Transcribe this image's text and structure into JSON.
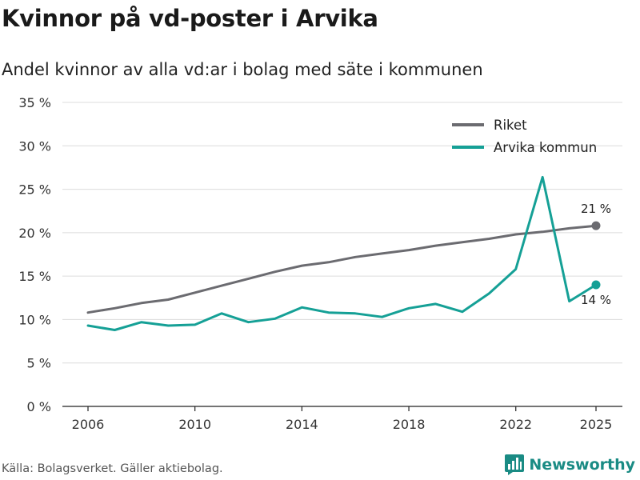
{
  "title": "Kvinnor på vd-poster i Arvika",
  "subtitle": "Andel kvinnor av alla vd:ar i bolag med säte i kommunen",
  "source": "Källa: Bolagsverket. Gäller aktiebolag.",
  "brand": {
    "name": "Newsworthy",
    "icon": "newsworthy-logo-icon",
    "color": "#1a8b84"
  },
  "chart_data": {
    "type": "line",
    "title": "Kvinnor på vd-poster i Arvika",
    "subtitle": "Andel kvinnor av alla vd:ar i bolag med säte i kommunen",
    "xlabel": "",
    "ylabel": "",
    "xlim": [
      2005,
      2026
    ],
    "ylim": [
      0,
      35
    ],
    "grid": true,
    "x_ticks": [
      2006,
      2010,
      2014,
      2018,
      2022,
      2025
    ],
    "x_tick_labels": [
      "2006",
      "2010",
      "2014",
      "2018",
      "2022",
      "2025"
    ],
    "y_ticks": [
      0,
      5,
      10,
      15,
      20,
      25,
      30,
      35
    ],
    "y_tick_labels": [
      "0 %",
      "5 %",
      "10 %",
      "15 %",
      "20 %",
      "25 %",
      "30 %",
      "35 %"
    ],
    "legend_position": "top-right",
    "x": [
      2006,
      2007,
      2008,
      2009,
      2010,
      2011,
      2012,
      2013,
      2014,
      2015,
      2016,
      2017,
      2018,
      2019,
      2020,
      2021,
      2022,
      2023,
      2024,
      2025
    ],
    "series": [
      {
        "name": "Riket",
        "color": "#6b6b70",
        "values": [
          10.8,
          11.3,
          11.9,
          12.3,
          13.1,
          13.9,
          14.7,
          15.5,
          16.2,
          16.6,
          17.2,
          17.6,
          18.0,
          18.5,
          18.9,
          19.3,
          19.8,
          20.1,
          20.5,
          20.8
        ],
        "end_label": "21 %"
      },
      {
        "name": "Arvika kommun",
        "color": "#15a096",
        "values": [
          9.3,
          8.8,
          9.7,
          9.3,
          9.4,
          10.7,
          9.7,
          10.1,
          11.4,
          10.8,
          10.7,
          10.3,
          11.3,
          11.8,
          10.9,
          13.0,
          15.8,
          26.4,
          12.1,
          14.0
        ],
        "end_label": "14 %"
      }
    ]
  }
}
